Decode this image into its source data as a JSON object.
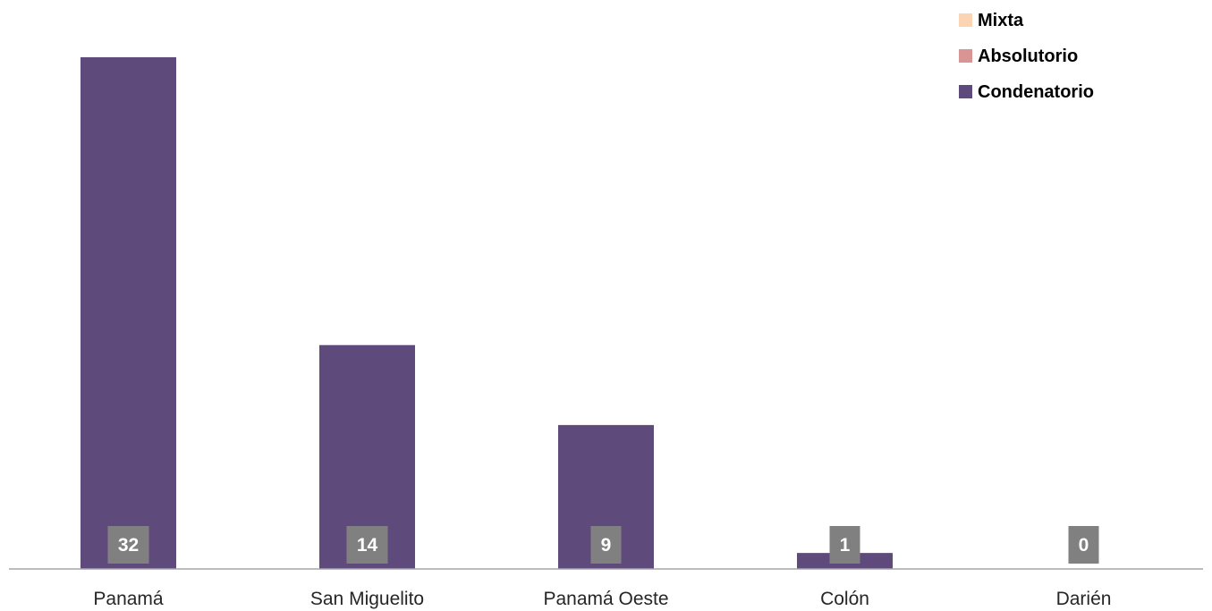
{
  "chart_data": {
    "type": "bar",
    "stacked": true,
    "categories": [
      "Panamá",
      "San Miguelito",
      "Panamá Oeste",
      "Colón",
      "Darién"
    ],
    "series": [
      {
        "name": "Condenatorio",
        "color": "#5f4b7b",
        "values": [
          32,
          14,
          9,
          1,
          0
        ]
      },
      {
        "name": "Absolutorio",
        "color": "#d99594",
        "values": [
          0,
          0,
          0,
          0,
          0
        ]
      },
      {
        "name": "Mixta",
        "color": "#fbd4b4",
        "values": [
          0,
          0,
          0,
          0,
          0
        ]
      }
    ],
    "data_labels": [
      "32",
      "14",
      "9",
      "1",
      "0"
    ],
    "legend_order": [
      "Mixta",
      "Absolutorio",
      "Condenatorio"
    ],
    "legend_position": "top-right",
    "ylim": [
      0,
      32
    ],
    "grid": false,
    "title": "",
    "xlabel": "",
    "ylabel": ""
  }
}
